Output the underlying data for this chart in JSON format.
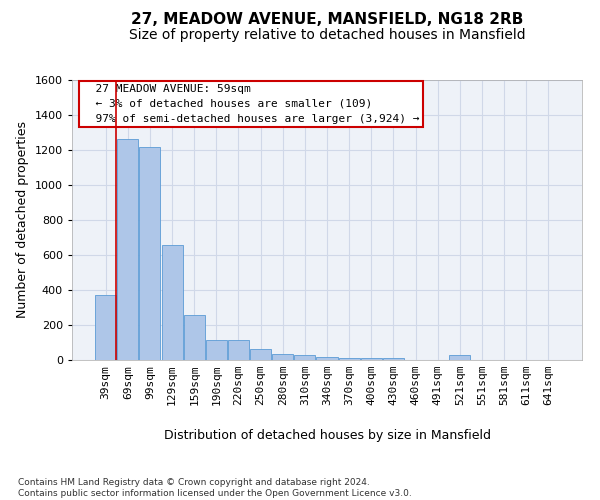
{
  "title1": "27, MEADOW AVENUE, MANSFIELD, NG18 2RB",
  "title2": "Size of property relative to detached houses in Mansfield",
  "xlabel": "Distribution of detached houses by size in Mansfield",
  "ylabel": "Number of detached properties",
  "footnote": "Contains HM Land Registry data © Crown copyright and database right 2024.\nContains public sector information licensed under the Open Government Licence v3.0.",
  "categories": [
    "39sqm",
    "69sqm",
    "99sqm",
    "129sqm",
    "159sqm",
    "190sqm",
    "220sqm",
    "250sqm",
    "280sqm",
    "310sqm",
    "340sqm",
    "370sqm",
    "400sqm",
    "430sqm",
    "460sqm",
    "491sqm",
    "521sqm",
    "551sqm",
    "581sqm",
    "611sqm",
    "641sqm"
  ],
  "values": [
    370,
    1265,
    1215,
    660,
    260,
    115,
    115,
    65,
    35,
    27,
    18,
    10,
    10,
    10,
    0,
    0,
    30,
    0,
    0,
    0,
    0
  ],
  "bar_color": "#aec6e8",
  "bar_edge_color": "#5b9bd5",
  "annotation_box_color": "#cc0000",
  "annotation_text": "  27 MEADOW AVENUE: 59sqm\n  ← 3% of detached houses are smaller (109)\n  97% of semi-detached houses are larger (3,924) →",
  "ylim": [
    0,
    1600
  ],
  "yticks": [
    0,
    200,
    400,
    600,
    800,
    1000,
    1200,
    1400,
    1600
  ],
  "grid_color": "#d0d8e8",
  "background_color": "#eef2f8",
  "title1_fontsize": 11,
  "title2_fontsize": 10,
  "xlabel_fontsize": 9,
  "ylabel_fontsize": 9,
  "tick_fontsize": 8,
  "annotation_fontsize": 8,
  "footnote_fontsize": 6.5
}
